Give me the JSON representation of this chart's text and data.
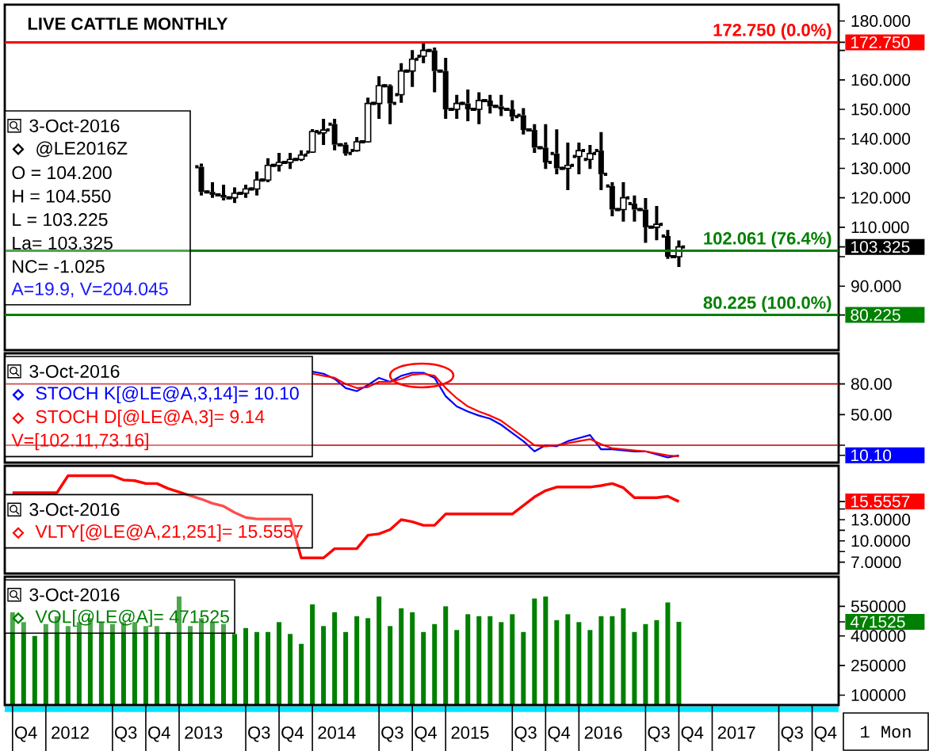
{
  "chart_data": [
    {
      "type": "candlestick",
      "title": "LIVE CATTLE MONTHLY",
      "color": "#000000",
      "x": [
        "2013-03",
        "2013-04",
        "2013-05",
        "2013-06",
        "2013-07",
        "2013-08",
        "2013-09",
        "2013-10",
        "2013-11",
        "2013-12",
        "2014-01",
        "2014-02",
        "2014-03",
        "2014-04",
        "2014-05",
        "2014-06",
        "2014-07",
        "2014-08",
        "2014-09",
        "2014-10",
        "2014-11",
        "2014-12",
        "2015-01",
        "2015-02",
        "2015-03",
        "2015-04",
        "2015-05",
        "2015-06",
        "2015-07",
        "2015-08",
        "2015-09",
        "2015-10",
        "2015-11",
        "2015-12",
        "2016-01",
        "2016-02",
        "2016-03",
        "2016-04",
        "2016-05",
        "2016-06",
        "2016-07",
        "2016-08",
        "2016-09",
        "2016-10"
      ],
      "ohlc": [
        [
          130.5,
          131.6,
          120.8,
          122.0
        ],
        [
          122.0,
          125.3,
          120.0,
          121.0
        ],
        [
          121.0,
          124.4,
          119.1,
          120.0
        ],
        [
          120.0,
          123.5,
          118.2,
          121.5
        ],
        [
          121.5,
          124.4,
          120.0,
          123.0
        ],
        [
          123.0,
          128.9,
          120.8,
          126.0
        ],
        [
          126.0,
          133.4,
          125.3,
          131.0
        ],
        [
          131.0,
          135.2,
          128.9,
          132.0
        ],
        [
          132.0,
          135.2,
          129.8,
          133.0
        ],
        [
          133.0,
          136.1,
          132.5,
          134.5
        ],
        [
          135.5,
          143.3,
          135.2,
          142.5
        ],
        [
          142.0,
          146.8,
          137.9,
          143.0
        ],
        [
          145.0,
          146.8,
          136.1,
          138.0
        ],
        [
          138.0,
          138.8,
          134.3,
          135.0
        ],
        [
          136.0,
          140.6,
          135.6,
          139.0
        ],
        [
          139.0,
          154.0,
          138.8,
          152.0
        ],
        [
          152.0,
          161.2,
          146.8,
          158.0
        ],
        [
          158.0,
          158.5,
          145.0,
          152.0
        ],
        [
          155.0,
          165.7,
          152.2,
          163.0
        ],
        [
          163.0,
          170.1,
          157.6,
          167.0
        ],
        [
          168.0,
          172.75,
          165.7,
          170.0
        ],
        [
          170.0,
          171.0,
          155.8,
          163.0
        ],
        [
          163.0,
          167.5,
          146.8,
          150.0
        ],
        [
          150.0,
          154.9,
          146.8,
          152.0
        ],
        [
          152.0,
          156.7,
          146.0,
          150.0
        ],
        [
          150.0,
          155.8,
          145.0,
          153.0
        ],
        [
          153.0,
          154.9,
          148.6,
          151.0
        ],
        [
          151.0,
          154.9,
          147.7,
          150.0
        ],
        [
          150.0,
          153.1,
          146.0,
          147.5
        ],
        [
          148.0,
          150.4,
          141.5,
          143.0
        ],
        [
          143.0,
          145.0,
          135.2,
          137.0
        ],
        [
          137.0,
          145.0,
          129.8,
          132.0
        ],
        [
          135.0,
          143.2,
          128.0,
          130.0
        ],
        [
          130.0,
          138.7,
          122.6,
          131.0
        ],
        [
          134.0,
          138.7,
          128.0,
          136.0
        ],
        [
          133.0,
          137.9,
          129.8,
          135.0
        ],
        [
          136.0,
          142.3,
          122.6,
          128.0
        ],
        [
          124.0,
          125.3,
          113.7,
          116.0
        ],
        [
          116.0,
          125.3,
          111.9,
          120.0
        ],
        [
          118.0,
          120.8,
          111.9,
          116.0
        ],
        [
          116.0,
          119.9,
          104.7,
          110.0
        ],
        [
          110.0,
          117.2,
          105.6,
          111.0
        ],
        [
          107.0,
          109.1,
          99.3,
          100.0
        ],
        [
          100.0,
          105.5,
          96.5,
          103.325
        ]
      ],
      "xlim": [
        "2011-09-10",
        "2017-12-13"
      ],
      "ylim": [
        68.3,
        185.5
      ],
      "yticks": [
        {
          "value": 80.225,
          "label": "80.225"
        },
        {
          "value": 90,
          "label": "90.000"
        },
        {
          "value": 100,
          "label": null
        },
        {
          "value": 103.325,
          "label": "103.325"
        },
        {
          "value": 110,
          "label": "110.000"
        },
        {
          "value": 120,
          "label": "120.000"
        },
        {
          "value": 130,
          "label": "130.000"
        },
        {
          "value": 140,
          "label": "140.000"
        },
        {
          "value": 150,
          "label": "150.000"
        },
        {
          "value": 160,
          "label": "160.000"
        },
        {
          "value": 170,
          "label": null
        },
        {
          "value": 172.75,
          "label": "172.750"
        },
        {
          "value": 180,
          "label": "180.000"
        }
      ],
      "tick_labels": "y",
      "ref_lines": [
        {
          "axis": "y",
          "value": 172.75,
          "label": "172.750 (0.0%)",
          "color": "#ff0000"
        },
        {
          "axis": "y",
          "value": 102.061,
          "label": "102.061 (76.4%)",
          "color": "#008000"
        },
        {
          "axis": "y",
          "value": 80.225,
          "label": "80.225 (100.0%)",
          "color": "#008000"
        }
      ],
      "annotations": [
        "3-Oct-2016",
        "@LE2016Z",
        "O = 104.200",
        "H = 104.550",
        "L = 103.225",
        "La= 103.325",
        "NC= -1.025",
        "A=19.9, V=204.045"
      ]
    },
    {
      "type": "line",
      "x": [
        "2014-01",
        "2014-02",
        "2014-03",
        "2014-04",
        "2014-05",
        "2014-06",
        "2014-07",
        "2014-08",
        "2014-09",
        "2014-10",
        "2014-11",
        "2014-12",
        "2015-01",
        "2015-02",
        "2015-03",
        "2015-04",
        "2015-05",
        "2015-06",
        "2015-07",
        "2015-08",
        "2015-09",
        "2015-10",
        "2015-11",
        "2015-12",
        "2016-01",
        "2016-02",
        "2016-03",
        "2016-04",
        "2016-05",
        "2016-06",
        "2016-07",
        "2016-08",
        "2016-09",
        "2016-10"
      ],
      "series": [
        {
          "name": "STOCH K[@LE@A,3,14]= 10.10",
          "color": "#0000ff",
          "values": [
            92,
            90,
            85,
            76,
            73,
            79,
            86,
            82,
            88,
            91,
            91,
            86,
            68,
            58,
            53,
            49,
            46,
            40,
            32,
            24,
            14,
            20,
            19,
            24,
            27,
            30,
            16,
            16,
            15,
            14,
            14,
            11,
            8,
            10.1
          ]
        },
        {
          "name": "STOCH D[@LE@A,3]= 9.14",
          "color": "#ff0000",
          "values": [
            90,
            88,
            86,
            80,
            76,
            77,
            82,
            82,
            85,
            89,
            90,
            88,
            76,
            66,
            58,
            53,
            49,
            44,
            36,
            28,
            20,
            19,
            20,
            22,
            24,
            26,
            21,
            17,
            16,
            15,
            14,
            12,
            10,
            9.14
          ]
        }
      ],
      "xlim": [
        "2011-09-10",
        "2017-12-13"
      ],
      "ylim": [
        3,
        110
      ],
      "yticks": [
        {
          "value": 10.1,
          "label": "10.10"
        },
        {
          "value": 20,
          "label": null
        },
        {
          "value": 50,
          "label": "50.00"
        },
        {
          "value": 80,
          "label": "80.00"
        }
      ],
      "tick_labels": "y",
      "legend": "top left",
      "ref_lines": [
        {
          "axis": "y",
          "value": 80,
          "color": "#c00000"
        },
        {
          "axis": "y",
          "value": 20,
          "color": "#c00000"
        }
      ],
      "annotations": [
        "3-Oct-2016",
        "V=[102.11,73.16]"
      ]
    },
    {
      "type": "line",
      "x": [
        "2011-10",
        "2011-11",
        "2011-12",
        "2012-01",
        "2012-02",
        "2012-03",
        "2012-04",
        "2012-05",
        "2012-06",
        "2012-07",
        "2012-08",
        "2012-09",
        "2012-10",
        "2012-11",
        "2012-12",
        "2013-01",
        "2013-02",
        "2013-03",
        "2013-04",
        "2013-05",
        "2013-06",
        "2013-07",
        "2013-08",
        "2013-09",
        "2013-10",
        "2013-11",
        "2013-12",
        "2014-01",
        "2014-02",
        "2014-03",
        "2014-04",
        "2014-05",
        "2014-06",
        "2014-07",
        "2014-08",
        "2014-09",
        "2014-10",
        "2014-11",
        "2014-12",
        "2015-01",
        "2015-02",
        "2015-03",
        "2015-04",
        "2015-05",
        "2015-06",
        "2015-07",
        "2015-08",
        "2015-09",
        "2015-10",
        "2015-11",
        "2015-12",
        "2016-01",
        "2016-02",
        "2016-03",
        "2016-04",
        "2016-05",
        "2016-06",
        "2016-07",
        "2016-08",
        "2016-09",
        "2016-10"
      ],
      "series": [
        {
          "name": "VLTY[@LE@A,21,251]= 15.5557",
          "color": "#ff0000",
          "values": [
            16.8,
            16.8,
            16.8,
            16.8,
            16.8,
            19.2,
            19.2,
            19.2,
            19.2,
            19.2,
            18.6,
            18.5,
            18.1,
            18.1,
            17.4,
            16.9,
            16.4,
            15.9,
            15.3,
            14.9,
            14.0,
            13.3,
            13.1,
            13.1,
            13.1,
            13.1,
            7.6,
            7.6,
            7.6,
            8.9,
            8.9,
            8.9,
            10.8,
            11.0,
            11.6,
            13.0,
            12.7,
            12.2,
            12.2,
            13.8,
            13.8,
            13.8,
            13.8,
            13.8,
            13.8,
            13.8,
            15.0,
            16.2,
            17.1,
            17.6,
            17.6,
            17.6,
            17.6,
            17.8,
            18.1,
            17.5,
            16.1,
            16.1,
            16.1,
            16.3,
            15.5557
          ]
        }
      ],
      "xlim": [
        "2011-09-10",
        "2017-12-13"
      ],
      "ylim": [
        5.4,
        20.6
      ],
      "yticks": [
        {
          "value": 7,
          "label": "7.0000"
        },
        {
          "value": 8.5,
          "label": null
        },
        {
          "value": 10,
          "label": "10.0000"
        },
        {
          "value": 11.5,
          "label": null
        },
        {
          "value": 13,
          "label": "13.0000"
        },
        {
          "value": 14.5,
          "label": null
        },
        {
          "value": 15.5557,
          "label": "15.5557"
        }
      ],
      "tick_labels": "y",
      "legend": "left",
      "annotations": [
        "3-Oct-2016"
      ]
    },
    {
      "type": "bar",
      "xlabel": "1 Mon",
      "x": [
        "2011-10",
        "2011-11",
        "2011-12",
        "2012-01",
        "2012-02",
        "2012-03",
        "2012-04",
        "2012-05",
        "2012-06",
        "2012-07",
        "2012-08",
        "2012-09",
        "2012-10",
        "2012-11",
        "2012-12",
        "2013-01",
        "2013-02",
        "2013-03",
        "2013-04",
        "2013-05",
        "2013-06",
        "2013-07",
        "2013-08",
        "2013-09",
        "2013-10",
        "2013-11",
        "2013-12",
        "2014-01",
        "2014-02",
        "2014-03",
        "2014-04",
        "2014-05",
        "2014-06",
        "2014-07",
        "2014-08",
        "2014-09",
        "2014-10",
        "2014-11",
        "2014-12",
        "2015-01",
        "2015-02",
        "2015-03",
        "2015-04",
        "2015-05",
        "2015-06",
        "2015-07",
        "2015-08",
        "2015-09",
        "2015-10",
        "2015-11",
        "2015-12",
        "2016-01",
        "2016-02",
        "2016-03",
        "2016-04",
        "2016-05",
        "2016-06",
        "2016-07",
        "2016-08",
        "2016-09",
        "2016-10"
      ],
      "series": [
        {
          "name": "VOL[@LE@A]= 471525",
          "color": "#008000",
          "values": [
            520000,
            470000,
            400000,
            460000,
            500000,
            450000,
            470000,
            490000,
            470000,
            460000,
            470000,
            470000,
            450000,
            450000,
            420000,
            600000,
            450000,
            490000,
            470000,
            460000,
            410000,
            440000,
            420000,
            420000,
            470000,
            410000,
            360000,
            560000,
            450000,
            520000,
            420000,
            500000,
            490000,
            600000,
            450000,
            540000,
            520000,
            420000,
            460000,
            550000,
            430000,
            510000,
            500000,
            500000,
            470000,
            510000,
            420000,
            590000,
            600000,
            480000,
            510000,
            470000,
            430000,
            500000,
            500000,
            540000,
            420000,
            460000,
            480000,
            570000,
            471525
          ]
        }
      ],
      "xlim": [
        "2011-09-10",
        "2017-12-13"
      ],
      "ylim": [
        50000,
        700000
      ],
      "xticks": [
        {
          "value": "2011-10",
          "label": null
        },
        {
          "value": "2011-11-07",
          "label": "Q4"
        },
        {
          "value": "2012-01",
          "label": null
        },
        {
          "value": "2012-03-07",
          "label": "2012"
        },
        {
          "value": "2012-07",
          "label": null
        },
        {
          "value": "2012-08-07",
          "label": "Q3"
        },
        {
          "value": "2012-10",
          "label": null
        },
        {
          "value": "2012-11-07",
          "label": "Q4"
        },
        {
          "value": "2013-01",
          "label": null
        },
        {
          "value": "2013-03-07",
          "label": "2013"
        },
        {
          "value": "2013-07",
          "label": null
        },
        {
          "value": "2013-08-07",
          "label": "Q3"
        },
        {
          "value": "2013-10",
          "label": null
        },
        {
          "value": "2013-11-07",
          "label": "Q4"
        },
        {
          "value": "2014-01",
          "label": null
        },
        {
          "value": "2014-03-07",
          "label": "2014"
        },
        {
          "value": "2014-07",
          "label": null
        },
        {
          "value": "2014-08-07",
          "label": "Q3"
        },
        {
          "value": "2014-10",
          "label": null
        },
        {
          "value": "2014-11-07",
          "label": "Q4"
        },
        {
          "value": "2015-01",
          "label": null
        },
        {
          "value": "2015-03-07",
          "label": "2015"
        },
        {
          "value": "2015-07",
          "label": null
        },
        {
          "value": "2015-08-07",
          "label": "Q3"
        },
        {
          "value": "2015-10",
          "label": null
        },
        {
          "value": "2015-11-07",
          "label": "Q4"
        },
        {
          "value": "2016-01",
          "label": null
        },
        {
          "value": "2016-03-07",
          "label": "2016"
        },
        {
          "value": "2016-07",
          "label": null
        },
        {
          "value": "2016-08-07",
          "label": "Q3"
        },
        {
          "value": "2016-10",
          "label": null
        },
        {
          "value": "2016-11-07",
          "label": "Q4"
        },
        {
          "value": "2017-01",
          "label": null
        },
        {
          "value": "2017-03-07",
          "label": "2017"
        },
        {
          "value": "2017-07",
          "label": null
        },
        {
          "value": "2017-08-07",
          "label": "Q3"
        },
        {
          "value": "2017-10",
          "label": null
        },
        {
          "value": "2017-11-07",
          "label": "Q4"
        }
      ],
      "yticks": [
        100000,
        250000,
        400000,
        {
          "value": 471525,
          "label": "471525"
        },
        550000
      ],
      "legend": "top left",
      "annotations": [
        "3-Oct-2016"
      ]
    }
  ]
}
